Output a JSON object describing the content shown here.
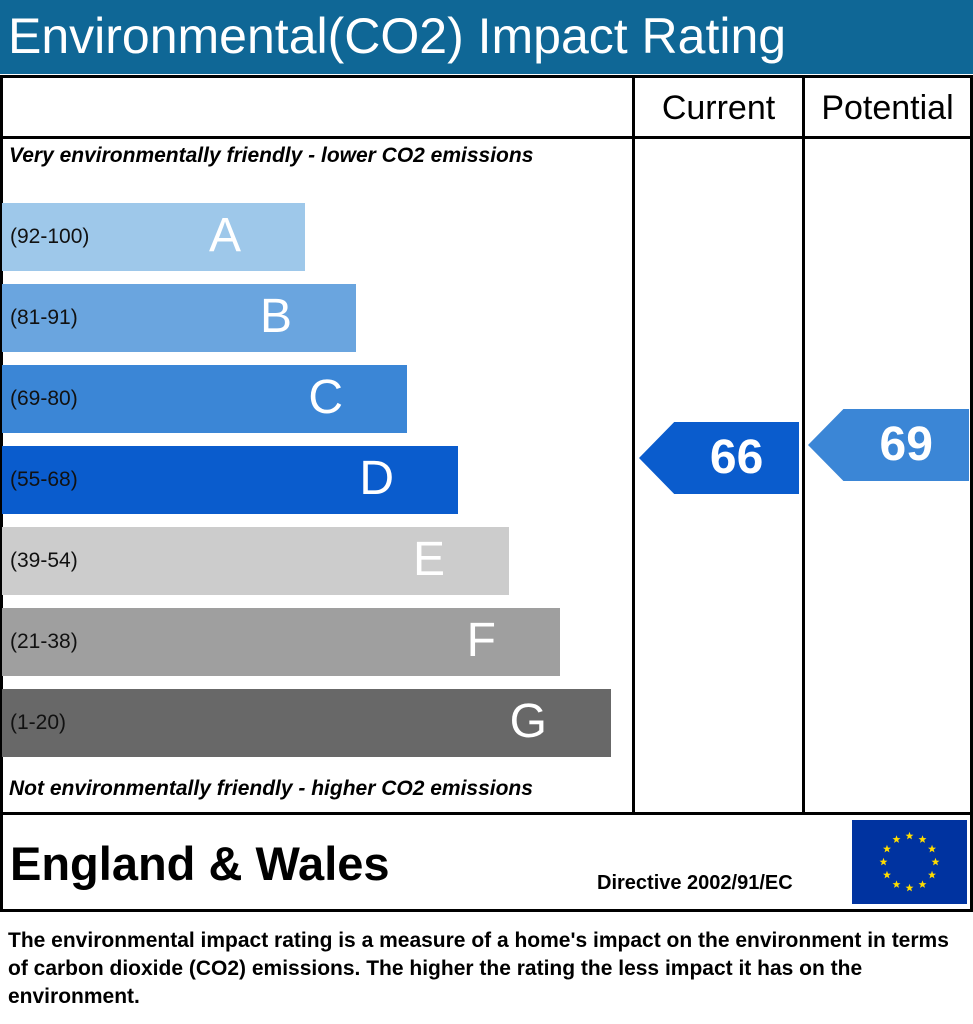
{
  "header": {
    "title": "Environmental(CO2) Impact Rating"
  },
  "columns": {
    "current_label": "Current",
    "potential_label": "Potential"
  },
  "labels": {
    "top": "Very environmentally friendly - lower CO2 emissions",
    "bottom": "Not environmentally friendly - higher CO2 emissions"
  },
  "region": "England & Wales",
  "directive": "Directive 2002/91/EC",
  "footer_text": "The environmental impact rating is a measure of a home's impact on the environment in terms of carbon dioxide (CO2) emissions. The higher the rating the less impact it has on the environment.",
  "colors": {
    "title_bar": "#0f6796",
    "eu_flag": "#0033a0",
    "eu_stars": "#ffdd00"
  },
  "chart_data": {
    "type": "bar",
    "bands": [
      {
        "letter": "A",
        "range": "(92-100)",
        "min": 92,
        "max": 100,
        "color": "#9ec8ea"
      },
      {
        "letter": "B",
        "range": "(81-91)",
        "min": 81,
        "max": 91,
        "color": "#6aa5df"
      },
      {
        "letter": "C",
        "range": "(69-80)",
        "min": 69,
        "max": 80,
        "color": "#3b86d6"
      },
      {
        "letter": "D",
        "range": "(55-68)",
        "min": 55,
        "max": 68,
        "color": "#0a5ccd"
      },
      {
        "letter": "E",
        "range": "(39-54)",
        "min": 39,
        "max": 54,
        "color": "#cccccc"
      },
      {
        "letter": "F",
        "range": "(21-38)",
        "min": 21,
        "max": 38,
        "color": "#9f9f9f"
      },
      {
        "letter": "G",
        "range": "(1-20)",
        "min": 1,
        "max": 20,
        "color": "#686868"
      }
    ],
    "current": {
      "value": 66,
      "band": "D",
      "color": "#0a5ccd"
    },
    "potential": {
      "value": 69,
      "band": "C",
      "color": "#3b86d6"
    }
  }
}
